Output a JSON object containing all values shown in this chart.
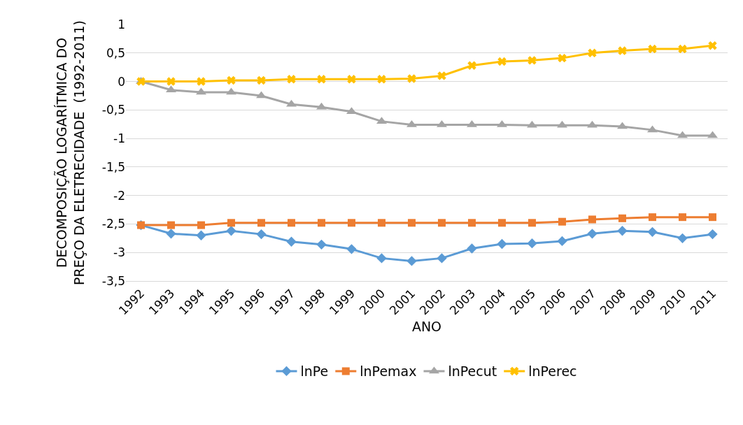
{
  "chart_data": {
    "type": "line",
    "xlabel": "ANO",
    "ylabel": "DECOMPOSIÇÃO LOGARÍTMICA DO PREÇO DA ELETRECIDADE  (1992-2011)",
    "categories": [
      "1992",
      "1993",
      "1994",
      "1995",
      "1996",
      "1997",
      "1998",
      "1999",
      "2000",
      "2001",
      "2002",
      "2003",
      "2004",
      "2005",
      "2006",
      "2007",
      "2008",
      "2009",
      "2010",
      "2011"
    ],
    "series": [
      {
        "name": "lnPe",
        "color": "#5b9bd5",
        "marker": "diamond",
        "values": [
          -2.52,
          -2.67,
          -2.7,
          -2.62,
          -2.68,
          -2.81,
          -2.86,
          -2.94,
          -3.1,
          -3.15,
          -3.1,
          -2.93,
          -2.85,
          -2.84,
          -2.8,
          -2.67,
          -2.62,
          -2.64,
          -2.75,
          -2.68
        ]
      },
      {
        "name": "lnPemax",
        "color": "#ed7d31",
        "marker": "square",
        "values": [
          -2.52,
          -2.52,
          -2.52,
          -2.48,
          -2.48,
          -2.48,
          -2.48,
          -2.48,
          -2.48,
          -2.48,
          -2.48,
          -2.48,
          -2.48,
          -2.48,
          -2.46,
          -2.42,
          -2.4,
          -2.38,
          -2.38,
          -2.38
        ]
      },
      {
        "name": "lnPecut",
        "color": "#a5a5a5",
        "marker": "triangle",
        "values": [
          0,
          -0.15,
          -0.19,
          -0.19,
          -0.25,
          -0.4,
          -0.45,
          -0.53,
          -0.7,
          -0.76,
          -0.76,
          -0.76,
          -0.76,
          -0.77,
          -0.77,
          -0.77,
          -0.79,
          -0.85,
          -0.95,
          -0.95
        ]
      },
      {
        "name": "lnPerec",
        "color": "#ffc000",
        "marker": "cross",
        "values": [
          0,
          0,
          0,
          0.02,
          0.02,
          0.04,
          0.04,
          0.04,
          0.04,
          0.05,
          0.1,
          0.28,
          0.35,
          0.37,
          0.41,
          0.5,
          0.54,
          0.57,
          0.57,
          0.63
        ]
      }
    ],
    "ylim": [
      -3.5,
      1
    ],
    "yticks": [
      {
        "value": 1,
        "label": "1"
      },
      {
        "value": 0.5,
        "label": "0,5"
      },
      {
        "value": 0,
        "label": "0"
      },
      {
        "value": -0.5,
        "label": "-0,5"
      },
      {
        "value": -1,
        "label": "-1"
      },
      {
        "value": -1.5,
        "label": "-1,5"
      },
      {
        "value": -2,
        "label": "-2"
      },
      {
        "value": -2.5,
        "label": "-2,5"
      },
      {
        "value": -3,
        "label": "-3"
      },
      {
        "value": -3.5,
        "label": "-3,5"
      }
    ],
    "grid": "y",
    "legend": "bottom",
    "line_style": "solid"
  }
}
